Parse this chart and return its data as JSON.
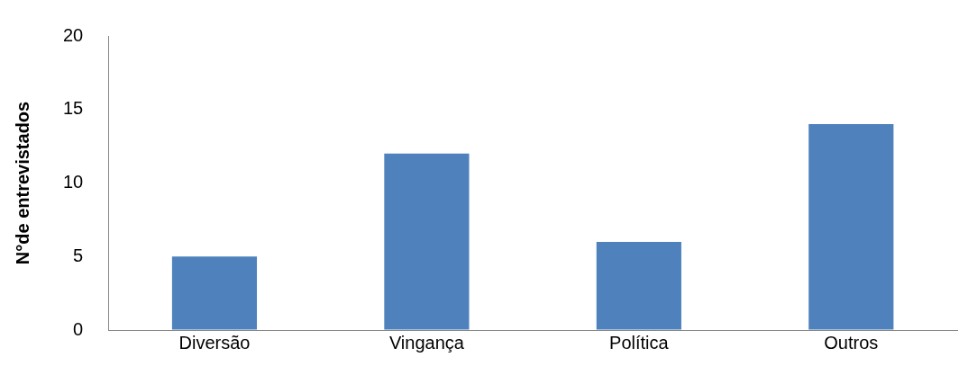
{
  "chart_data": {
    "type": "bar",
    "ylabel": "N°de entrevistados",
    "categories": [
      "Diversão",
      "Vingança",
      "Política",
      "Outros"
    ],
    "series": [
      {
        "color": "#4f81bd",
        "values": [
          5,
          12,
          6,
          14
        ]
      }
    ],
    "ylim": [
      0,
      20
    ],
    "yticks": [
      0,
      5,
      10,
      15,
      20
    ],
    "grid": false,
    "legend": false
  }
}
